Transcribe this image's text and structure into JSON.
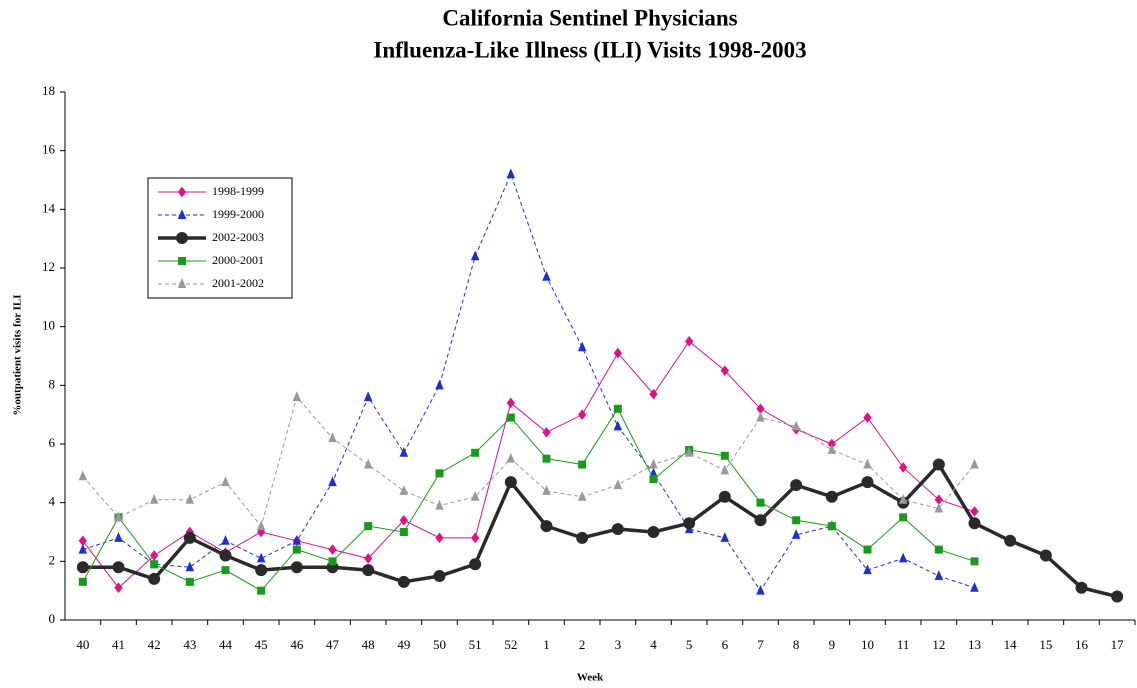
{
  "chart_data": {
    "type": "line",
    "title": "California Sentinel Physicians",
    "subtitle": "Influenza-Like Illness (ILI) Visits 1998-2003",
    "y_label": "%outpatient visits for ILI",
    "x_label": "Week",
    "categories": [
      "40",
      "41",
      "42",
      "43",
      "44",
      "45",
      "46",
      "47",
      "48",
      "49",
      "50",
      "51",
      "52",
      "1",
      "2",
      "3",
      "4",
      "5",
      "6",
      "7",
      "8",
      "9",
      "10",
      "11",
      "12",
      "13",
      "14",
      "15",
      "16",
      "17"
    ],
    "ylim": [
      0,
      18
    ],
    "yticks": [
      0,
      2,
      4,
      6,
      8,
      10,
      12,
      14,
      16,
      18
    ],
    "grid": false,
    "legend": "upper-left",
    "series": [
      {
        "name": "1998-1999",
        "color": "#e0118a",
        "marker": "diamond",
        "dashed": false,
        "width": 1,
        "values": [
          2.7,
          1.1,
          2.2,
          3.0,
          2.3,
          3.0,
          2.7,
          2.4,
          2.1,
          3.4,
          2.8,
          2.8,
          7.4,
          6.4,
          7.0,
          9.1,
          7.7,
          9.5,
          8.5,
          7.2,
          6.5,
          6.0,
          6.9,
          5.2,
          4.1,
          3.7,
          null,
          null,
          null,
          null
        ]
      },
      {
        "name": "1999-2000",
        "color": "#1a2fd6",
        "marker": "triangle",
        "dashed": true,
        "width": 1,
        "values": [
          2.4,
          2.8,
          1.9,
          1.8,
          2.7,
          2.1,
          2.7,
          4.7,
          7.6,
          5.7,
          8.0,
          12.4,
          15.2,
          11.7,
          9.3,
          6.6,
          5.0,
          3.1,
          2.8,
          1.0,
          2.9,
          3.2,
          1.7,
          2.1,
          1.5,
          1.1,
          null,
          null,
          null,
          null
        ]
      },
      {
        "name": "2002-2003",
        "color": "#2a2a2a",
        "marker": "circle",
        "dashed": false,
        "width": 3.5,
        "values": [
          1.8,
          1.8,
          1.4,
          2.8,
          2.2,
          1.7,
          1.8,
          1.8,
          1.7,
          1.3,
          1.5,
          1.9,
          4.7,
          3.2,
          2.8,
          3.1,
          3.0,
          3.3,
          4.2,
          3.4,
          4.6,
          4.2,
          4.7,
          4.0,
          5.3,
          3.3,
          2.7,
          2.2,
          1.1,
          0.8
        ]
      },
      {
        "name": "2000-2001",
        "color": "#1a9a1a",
        "marker": "square",
        "dashed": false,
        "width": 1,
        "values": [
          1.3,
          3.5,
          1.9,
          1.3,
          1.7,
          1.0,
          2.4,
          2.0,
          3.2,
          3.0,
          5.0,
          5.7,
          6.9,
          5.5,
          5.3,
          7.2,
          4.8,
          5.8,
          5.6,
          4.0,
          3.4,
          3.2,
          2.4,
          3.5,
          2.4,
          2.0,
          null,
          null,
          null,
          null
        ]
      },
      {
        "name": "2001-2002",
        "color": "#999999",
        "marker": "triangle",
        "dashed": true,
        "width": 1,
        "values": [
          4.9,
          3.5,
          4.1,
          4.1,
          4.7,
          3.2,
          7.6,
          6.2,
          5.3,
          4.4,
          3.9,
          4.2,
          5.5,
          4.4,
          4.2,
          4.6,
          5.3,
          5.7,
          5.1,
          6.9,
          6.6,
          5.8,
          5.3,
          4.1,
          3.8,
          5.3,
          null,
          null,
          null,
          null
        ]
      }
    ]
  }
}
